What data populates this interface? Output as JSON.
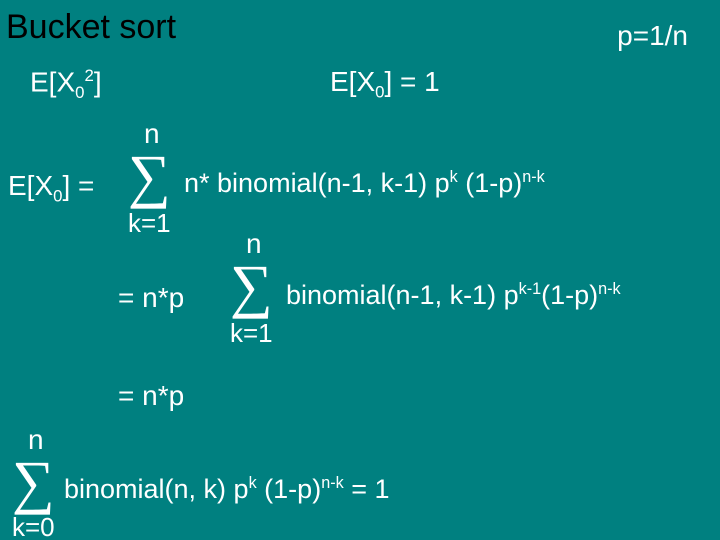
{
  "background_color": "#008080",
  "text_color": "#ffffff",
  "title_color": "#000000",
  "title": "Bucket sort",
  "p_equation": "p=1/n",
  "ex02_label": "E[X",
  "ex02_sub": "0",
  "ex02_sup": "2",
  "ex02_close": "]",
  "ex0_eq1_lhs": "E[X",
  "ex0_eq1_sub": "0",
  "ex0_eq1_rhs": "] = 1",
  "line1": {
    "lhs_a": "E[X",
    "lhs_sub": "0",
    "lhs_b": "] = ",
    "sigma_upper": "n",
    "sigma_lower": "k=1",
    "rhs_a": " n* binomial(n-1, k-1) p",
    "rhs_sup1": "k",
    "rhs_b": " (1-p)",
    "rhs_sup2": "n-k"
  },
  "line2": {
    "lhs": "= n*p ",
    "sigma_upper": "n",
    "sigma_lower": "k=1",
    "rhs_a": " binomial(n-1, k-1) p",
    "rhs_sup1": "k-1",
    "rhs_b": "(1-p)",
    "rhs_sup2": "n-k"
  },
  "line3": "= n*p",
  "line4": {
    "sigma_upper": "n",
    "sigma_lower": "k=0",
    "rhs_a": " binomial(n, k) p",
    "rhs_sup1": "k",
    "rhs_b": " (1-p)",
    "rhs_sup2": "n-k",
    "rhs_c": " = 1"
  }
}
